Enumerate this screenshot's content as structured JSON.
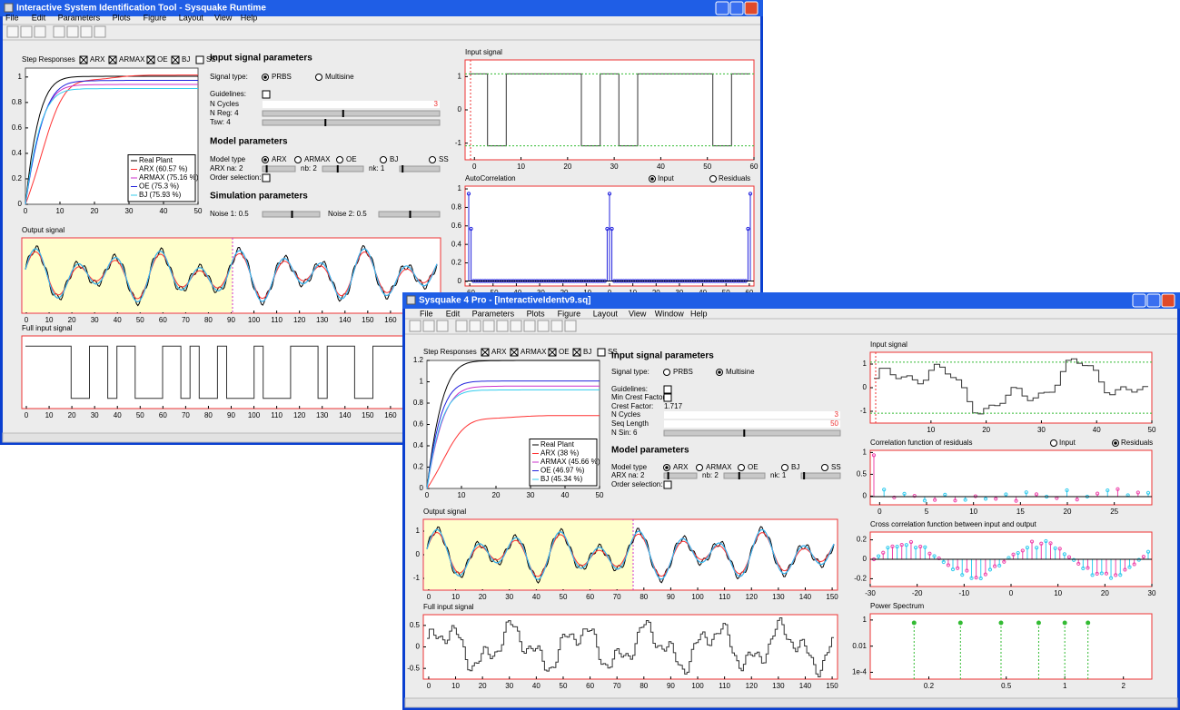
{
  "windows": [
    {
      "title": "Interactive System Identification Tool - Sysquake Runtime",
      "menu": [
        "File",
        "Edit",
        "Parameters",
        "Plots",
        "Figure",
        "Layout",
        "View",
        "Help"
      ],
      "step": {
        "title": "Step Responses",
        "checks": [
          "ARX",
          "ARMAX",
          "OE",
          "BJ",
          "SS"
        ],
        "xlim": [
          0,
          50
        ],
        "xticks": [
          0,
          10,
          20,
          30,
          40,
          50
        ],
        "ylim": [
          0,
          1.07
        ],
        "yticks": [
          0,
          0.2,
          0.4,
          0.6,
          0.8,
          1
        ],
        "legend": [
          {
            "name": "Real Plant",
            "color": "#000000"
          },
          {
            "name": "ARX (60.57 %)",
            "color": "#ff3333"
          },
          {
            "name": "ARMAX (75.16 %)",
            "color": "#cc33cc"
          },
          {
            "name": "OE (75.3 %)",
            "color": "#2222dd"
          },
          {
            "name": "BJ (75.93 %)",
            "color": "#33ccee"
          }
        ]
      },
      "plots": [
        {
          "title": "Input signal",
          "xlim": [
            -2,
            60
          ],
          "xticks": [
            0,
            10,
            20,
            30,
            40,
            50,
            60
          ],
          "ylim": [
            -1.5,
            1.5
          ],
          "yticks": [
            -1,
            0,
            1
          ]
        },
        {
          "title": "AutoCorrelation",
          "options": [
            "Input",
            "Residuals"
          ],
          "xlim": [
            -62,
            62
          ],
          "xticks": [
            -60,
            -50,
            -40,
            -30,
            -20,
            -10,
            0,
            10,
            20,
            30,
            40,
            50,
            60
          ],
          "ylim": [
            -0.05,
            1.03
          ],
          "yticks": [
            0,
            0.2,
            0.4,
            0.6,
            0.8,
            1
          ]
        },
        {
          "title": "Output signal",
          "xlim": [
            -2,
            182
          ],
          "xticks": [
            0,
            10,
            20,
            30,
            40,
            50,
            60,
            70,
            80,
            90,
            100,
            110,
            120,
            130,
            140,
            150,
            160
          ],
          "ylim": [
            -1.5,
            1.5
          ]
        },
        {
          "title": "Full input signal",
          "xlim": [
            -2,
            182
          ],
          "xticks": [
            0,
            10,
            20,
            30,
            40,
            50,
            60,
            70,
            80,
            90,
            100,
            110,
            120,
            130,
            140,
            150,
            160
          ],
          "ylim": [
            -1.2,
            1.2
          ]
        }
      ],
      "controls": [
        "Input signal parameters",
        "Signal type:",
        "PRBS",
        "Multisine",
        "Guidelines:",
        "N Cycles",
        "3",
        "N Reg: 4",
        "Tsw: 4",
        "Model parameters",
        "Model type",
        "ARX",
        "ARMAX",
        "OE",
        "BJ",
        "SS",
        "ARX na: 2",
        "nb: 2",
        "nk: 1",
        "Order selection:",
        "Simulation parameters",
        "Noise 1: 0.5",
        "Noise 2: 0.5"
      ]
    },
    {
      "title": "Sysquake 4 Pro - [InteractiveIdentv9.sq]",
      "menu": [
        "File",
        "Edit",
        "Parameters",
        "Plots",
        "Figure",
        "Layout",
        "View",
        "Window",
        "Help"
      ],
      "step": {
        "title": "Step Responses",
        "checks": [
          "ARX",
          "ARMAX",
          "OE",
          "BJ",
          "SS"
        ],
        "xlim": [
          0,
          50
        ],
        "xticks": [
          0,
          10,
          20,
          30,
          40,
          50
        ],
        "ylim": [
          0,
          1.2
        ],
        "yticks": [
          0,
          0.2,
          0.4,
          0.6,
          0.8,
          1,
          1.2
        ],
        "legend": [
          {
            "name": "Real Plant",
            "color": "#000000"
          },
          {
            "name": "ARX (38 %)",
            "color": "#ff3333"
          },
          {
            "name": "ARMAX (45.66 %)",
            "color": "#cc33cc"
          },
          {
            "name": "OE (46.97 %)",
            "color": "#2222dd"
          },
          {
            "name": "BJ (45.34 %)",
            "color": "#33ccee"
          }
        ]
      },
      "plots": [
        {
          "title": "Input signal",
          "xlim": [
            -1,
            50
          ],
          "xticks": [
            10,
            20,
            30,
            40,
            50
          ],
          "ylim": [
            -1.5,
            1.5
          ],
          "yticks": [
            -1,
            0,
            1
          ]
        },
        {
          "title": "Correlation function of residuals",
          "options": [
            "Input",
            "Residuals"
          ],
          "xlim": [
            -1,
            29
          ],
          "xticks": [
            0,
            5,
            10,
            15,
            20,
            25
          ],
          "ylim": [
            -0.2,
            1.05
          ],
          "yticks": [
            0,
            0.5,
            1
          ]
        },
        {
          "title": "Cross correlation function between input and output",
          "xlim": [
            -30,
            30
          ],
          "xticks": [
            -30,
            -20,
            -10,
            0,
            10,
            20,
            30
          ],
          "ylim": [
            -0.28,
            0.28
          ],
          "yticks": [
            -0.2,
            0,
            0.2
          ]
        },
        {
          "title": "Power Spectrum",
          "xlog": true,
          "ylog": true,
          "xlim": [
            0.1,
            2.8
          ],
          "xticks": [
            0.2,
            0.5,
            1,
            2
          ],
          "ylim": [
            3e-05,
            3
          ],
          "yticks": [
            {
              "value": 0.0001,
              "label": "1e-4"
            },
            0.01,
            1
          ]
        },
        {
          "title": "Output signal",
          "xlim": [
            -2,
            152
          ],
          "xticks": [
            0,
            10,
            20,
            30,
            40,
            50,
            60,
            70,
            80,
            90,
            100,
            110,
            120,
            130,
            140,
            150
          ],
          "ylim": [
            -1.5,
            1.5
          ],
          "yticks": [
            -1,
            0,
            1
          ]
        },
        {
          "title": "Full input signal",
          "xlim": [
            -2,
            152
          ],
          "xticks": [
            0,
            10,
            20,
            30,
            40,
            50,
            60,
            70,
            80,
            90,
            100,
            110,
            120,
            130,
            140,
            150
          ],
          "ylim": [
            -0.75,
            0.75
          ],
          "yticks": [
            -0.5,
            0,
            0.5
          ]
        }
      ],
      "controls": [
        "Input signal parameters",
        "Signal type:",
        "PRBS",
        "Multisine",
        "Guidelines:",
        "Min Crest Factor:",
        "Crest Factor:",
        "1.717",
        "N Cycles",
        "3",
        "Seq Length",
        "50",
        "N Sin: 6",
        "Model parameters",
        "Model type",
        "ARX",
        "ARMAX",
        "OE",
        "BJ",
        "SS",
        "ARX na: 2",
        "nb: 2",
        "nk: 1",
        "Order selection:"
      ]
    }
  ]
}
